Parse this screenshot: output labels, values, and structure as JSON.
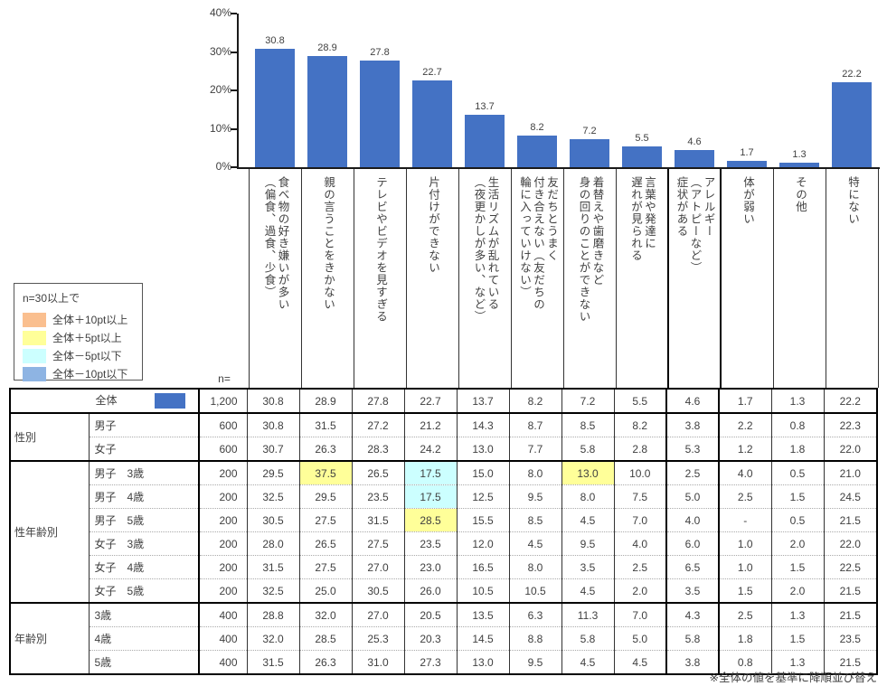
{
  "chart_data": {
    "type": "bar",
    "title": "",
    "categories": [
      "食べ物の好き嫌いが多い\n（偏食、過食、少食）",
      "親の言うことをきかない",
      "テレビやビデオを見すぎる",
      "片付けができない",
      "生活リズムが乱れている\n（夜更かしが多い、など）",
      "友だちとうまく\n付き合えない（友だちの\n輪に入っていけない）",
      "着替えや歯磨きなど\n身の回りのことができない",
      "言葉や発達に\n遅れが見られる",
      "アレルギー\n（アトピーなど）\n症状がある",
      "体が弱い",
      "その他",
      "特にない"
    ],
    "values": [
      "30.8",
      "28.9",
      "27.8",
      "22.7",
      "13.7",
      "8.2",
      "7.2",
      "5.5",
      "4.6",
      "1.7",
      "1.3",
      "22.2"
    ],
    "xlabel": "",
    "ylabel": "",
    "ylim": [
      0,
      40
    ],
    "yticks": [
      "40%",
      "30%",
      "20%",
      "10%",
      "0%"
    ],
    "grid": false,
    "bar_color": "#4472C4"
  },
  "legend": {
    "title": "n=30以上で",
    "items": [
      {
        "label": "全体＋10pt以上",
        "color": "#FABF8F"
      },
      {
        "label": "全体＋5pt以上",
        "color": "#FFFF99"
      },
      {
        "label": "全体－5pt以下",
        "color": "#CCFFFF"
      },
      {
        "label": "全体－10pt以下",
        "color": "#8EB4E3"
      }
    ]
  },
  "table": {
    "n_header": "n=",
    "highlight_colors": {
      "yellow": "#FFFF99",
      "cyan": "#CCFFFF"
    },
    "groups": [
      {
        "name": null,
        "rows": [
          {
            "label": "全体",
            "swatch": true,
            "n": "1,200",
            "values": [
              "30.8",
              "28.9",
              "27.8",
              "22.7",
              "13.7",
              "8.2",
              "7.2",
              "5.5",
              "4.6",
              "1.7",
              "1.3",
              "22.2"
            ],
            "highlights": {}
          }
        ]
      },
      {
        "name": "性別",
        "rows": [
          {
            "label": "男子",
            "n": "600",
            "values": [
              "30.8",
              "31.5",
              "27.2",
              "21.2",
              "14.3",
              "8.7",
              "8.5",
              "8.2",
              "3.8",
              "2.2",
              "0.8",
              "22.3"
            ],
            "highlights": {}
          },
          {
            "label": "女子",
            "n": "600",
            "values": [
              "30.7",
              "26.3",
              "28.3",
              "24.2",
              "13.0",
              "7.7",
              "5.8",
              "2.8",
              "5.3",
              "1.2",
              "1.8",
              "22.0"
            ],
            "highlights": {}
          }
        ]
      },
      {
        "name": "性年齢別",
        "rows": [
          {
            "label": "男子　3歳",
            "n": "200",
            "values": [
              "29.5",
              "37.5",
              "26.5",
              "17.5",
              "15.0",
              "8.0",
              "13.0",
              "10.0",
              "2.5",
              "4.0",
              "0.5",
              "21.0"
            ],
            "highlights": {
              "1": "yellow",
              "3": "cyan",
              "6": "yellow"
            }
          },
          {
            "label": "男子　4歳",
            "n": "200",
            "values": [
              "32.5",
              "29.5",
              "23.5",
              "17.5",
              "12.5",
              "9.5",
              "8.0",
              "7.5",
              "5.0",
              "2.5",
              "1.5",
              "24.5"
            ],
            "highlights": {
              "3": "cyan"
            }
          },
          {
            "label": "男子　5歳",
            "n": "200",
            "values": [
              "30.5",
              "27.5",
              "31.5",
              "28.5",
              "15.5",
              "8.5",
              "4.5",
              "7.0",
              "4.0",
              "-",
              "0.5",
              "21.5"
            ],
            "highlights": {
              "3": "yellow"
            }
          },
          {
            "label": "女子　3歳",
            "n": "200",
            "values": [
              "28.0",
              "26.5",
              "27.5",
              "23.5",
              "12.0",
              "4.5",
              "9.5",
              "4.0",
              "6.0",
              "1.0",
              "2.0",
              "22.0"
            ],
            "highlights": {}
          },
          {
            "label": "女子　4歳",
            "n": "200",
            "values": [
              "31.5",
              "27.5",
              "27.0",
              "23.0",
              "16.5",
              "8.0",
              "3.5",
              "2.5",
              "6.5",
              "1.0",
              "1.5",
              "22.5"
            ],
            "highlights": {}
          },
          {
            "label": "女子　5歳",
            "n": "200",
            "values": [
              "32.5",
              "25.0",
              "30.5",
              "26.0",
              "10.5",
              "10.5",
              "4.5",
              "2.0",
              "3.5",
              "1.5",
              "2.0",
              "21.5"
            ],
            "highlights": {}
          }
        ]
      },
      {
        "name": "年齢別",
        "rows": [
          {
            "label": "3歳",
            "n": "400",
            "values": [
              "28.8",
              "32.0",
              "27.0",
              "20.5",
              "13.5",
              "6.3",
              "11.3",
              "7.0",
              "4.3",
              "2.5",
              "1.3",
              "21.5"
            ],
            "highlights": {}
          },
          {
            "label": "4歳",
            "n": "400",
            "values": [
              "32.0",
              "28.5",
              "25.3",
              "20.3",
              "14.5",
              "8.8",
              "5.8",
              "5.0",
              "5.8",
              "1.8",
              "1.5",
              "23.5"
            ],
            "highlights": {}
          },
          {
            "label": "5歳",
            "n": "400",
            "values": [
              "31.5",
              "26.3",
              "31.0",
              "27.3",
              "13.0",
              "9.5",
              "4.5",
              "4.5",
              "3.8",
              "0.8",
              "1.3",
              "21.5"
            ],
            "highlights": {}
          }
        ]
      }
    ]
  },
  "footnote": "※全体の値を基準に降順並び替え"
}
